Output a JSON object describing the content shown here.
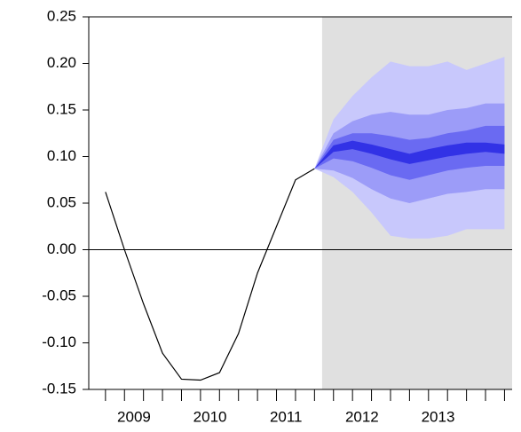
{
  "chart_data": {
    "type": "fan",
    "xlim": [
      2008.78,
      2014.35
    ],
    "ylim": [
      -0.15,
      0.25
    ],
    "yticks": [
      {
        "value": 0.25,
        "label": "0.25"
      },
      {
        "value": 0.2,
        "label": "0.20"
      },
      {
        "value": 0.15,
        "label": "0.15"
      },
      {
        "value": 0.1,
        "label": "0.10"
      },
      {
        "value": 0.05,
        "label": "0.05"
      },
      {
        "value": 0,
        "label": "0.00"
      },
      {
        "value": -0.05,
        "label": "-0.05"
      },
      {
        "value": -0.1,
        "label": "-0.10"
      },
      {
        "value": -0.15,
        "label": "-0.15"
      }
    ],
    "xticks": [
      {
        "value": 2009.375,
        "label": "2009"
      },
      {
        "value": 2010.375,
        "label": "2010"
      },
      {
        "value": 2011.375,
        "label": "2011"
      },
      {
        "value": 2012.375,
        "label": "2012"
      },
      {
        "value": 2013.375,
        "label": "2013"
      }
    ],
    "xminorticks": [
      2009,
      2009.25,
      2009.5,
      2009.75,
      2010,
      2010.25,
      2010.5,
      2010.75,
      2011,
      2011.25,
      2011.5,
      2011.75,
      2012,
      2012.25,
      2012.5,
      2012.75,
      2013,
      2013.25,
      2013.5,
      2013.75,
      2014,
      2014.25
    ],
    "forecast_start": 2011.85,
    "shade_color": "#e0e0e0",
    "line_color": "#000000",
    "x": [
      2009,
      2009.25,
      2009.5,
      2009.75,
      2010,
      2010.25,
      2010.5,
      2010.75,
      2011,
      2011.25,
      2011.5,
      2011.75
    ],
    "values": [
      0.062,
      0.0,
      -0.058,
      -0.111,
      -0.139,
      -0.14,
      -0.132,
      -0.09,
      -0.025,
      0.025,
      0.075,
      0.087
    ],
    "forecast_x": [
      2011.75,
      2012,
      2012.25,
      2012.5,
      2012.75,
      2013,
      2013.25,
      2013.5,
      2013.75,
      2014,
      2014.25
    ],
    "bands": [
      {
        "color": "#c8c8fc",
        "upper": [
          0.087,
          0.14,
          0.165,
          0.185,
          0.202,
          0.197,
          0.197,
          0.202,
          0.193,
          0.2,
          0.207
        ],
        "lower": [
          0.087,
          0.078,
          0.062,
          0.04,
          0.015,
          0.012,
          0.012,
          0.015,
          0.022,
          0.022,
          0.022
        ]
      },
      {
        "color": "#9c9cf8",
        "upper": [
          0.087,
          0.125,
          0.138,
          0.145,
          0.148,
          0.145,
          0.145,
          0.15,
          0.152,
          0.157,
          0.157
        ],
        "lower": [
          0.087,
          0.085,
          0.077,
          0.065,
          0.055,
          0.05,
          0.055,
          0.06,
          0.062,
          0.065,
          0.065
        ]
      },
      {
        "color": "#6a6af2",
        "upper": [
          0.087,
          0.118,
          0.125,
          0.125,
          0.122,
          0.118,
          0.12,
          0.125,
          0.128,
          0.133,
          0.133
        ],
        "lower": [
          0.087,
          0.098,
          0.095,
          0.088,
          0.08,
          0.075,
          0.08,
          0.085,
          0.088,
          0.09,
          0.09
        ]
      },
      {
        "color": "#3232e6",
        "upper": [
          0.087,
          0.112,
          0.117,
          0.113,
          0.108,
          0.103,
          0.108,
          0.112,
          0.115,
          0.115,
          0.113
        ],
        "lower": [
          0.087,
          0.105,
          0.108,
          0.103,
          0.097,
          0.092,
          0.096,
          0.1,
          0.103,
          0.105,
          0.103
        ]
      }
    ]
  }
}
